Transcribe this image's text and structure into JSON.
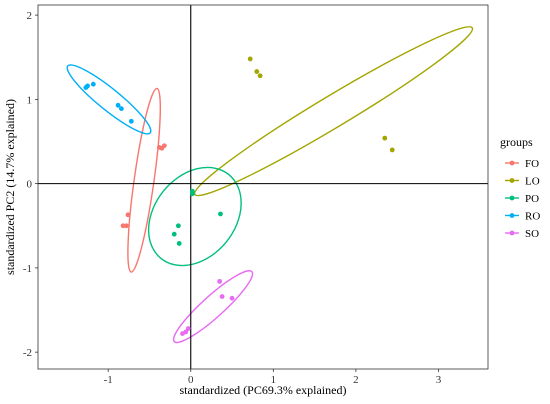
{
  "chart_data": {
    "type": "scatter",
    "xlabel": "standardized (PC69.3% explained)",
    "ylabel": "standardized PC2 (14.7% explained)",
    "xlim": [
      -1.85,
      3.6
    ],
    "ylim": [
      -2.2,
      2.12
    ],
    "xticks": [
      -1,
      0,
      1,
      2,
      3
    ],
    "yticks": [
      -2,
      -1,
      0,
      1,
      2
    ],
    "reference_lines": {
      "x": 0,
      "y": 0
    },
    "grid": false,
    "legend": {
      "title": "groups",
      "position": "right"
    },
    "series": [
      {
        "name": "FO",
        "color": "#F8766D",
        "points": [
          [
            -0.32,
            0.45
          ],
          [
            -0.35,
            0.42
          ],
          [
            -0.38,
            0.43
          ],
          [
            -0.76,
            -0.37
          ],
          [
            -0.78,
            -0.5
          ],
          [
            -0.82,
            -0.5
          ]
        ],
        "ellipse": {
          "center": [
            -0.565,
            0.04
          ],
          "rx": 0.12,
          "ry": 1.1,
          "rotate": 8
        }
      },
      {
        "name": "LO",
        "color": "#A3A500",
        "points": [
          [
            0.72,
            1.48
          ],
          [
            0.8,
            1.33
          ],
          [
            0.84,
            1.28
          ],
          [
            2.35,
            0.54
          ],
          [
            2.44,
            0.4
          ]
        ],
        "ellipse": {
          "center": [
            1.73,
            0.86
          ],
          "rx": 0.19,
          "ry": 1.92,
          "rotate": 59
        }
      },
      {
        "name": "PO",
        "color": "#00BF7D",
        "points": [
          [
            0.02,
            -0.09
          ],
          [
            0.02,
            -0.12
          ],
          [
            -0.15,
            -0.5
          ],
          [
            -0.2,
            -0.6
          ],
          [
            -0.14,
            -0.71
          ],
          [
            0.36,
            -0.36
          ]
        ],
        "ellipse": {
          "center": [
            0.05,
            -0.39
          ],
          "rx": 0.49,
          "ry": 0.64,
          "rotate": 39
        }
      },
      {
        "name": "RO",
        "color": "#00B0F6",
        "points": [
          [
            -1.25,
            1.16
          ],
          [
            -1.27,
            1.14
          ],
          [
            -1.18,
            1.18
          ],
          [
            -0.88,
            0.93
          ],
          [
            -0.84,
            0.89
          ],
          [
            -0.72,
            0.74
          ]
        ],
        "ellipse": {
          "center": [
            -0.99,
            1.0
          ],
          "rx": 0.13,
          "ry": 0.63,
          "rotate": -51
        }
      },
      {
        "name": "SO",
        "color": "#E76BF3",
        "points": [
          [
            0.35,
            -1.16
          ],
          [
            0.38,
            -1.34
          ],
          [
            0.5,
            -1.36
          ],
          [
            -0.03,
            -1.72
          ],
          [
            -0.06,
            -1.76
          ],
          [
            -0.1,
            -1.78
          ]
        ],
        "ellipse": {
          "center": [
            0.27,
            -1.46
          ],
          "rx": 0.13,
          "ry": 0.62,
          "rotate": 48
        }
      }
    ]
  }
}
